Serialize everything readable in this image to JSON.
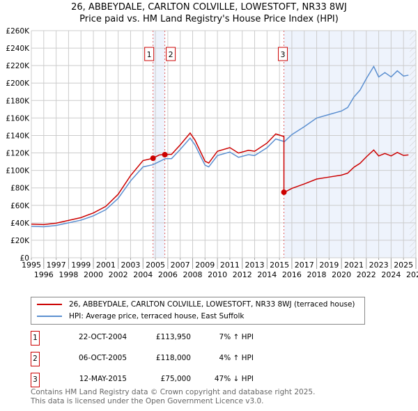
{
  "chart_data": {
    "type": "line",
    "title": "26, ABBEYDALE, CARLTON COLVILLE, LOWESTOFT, NR33 8WJ",
    "subtitle": "Price paid vs. HM Land Registry's House Price Index (HPI)",
    "xlim": [
      1995,
      2026
    ],
    "ylim": [
      0,
      260000
    ],
    "x_ticks": [
      "1995",
      "1996",
      "1997",
      "1998",
      "1999",
      "2000",
      "2001",
      "2002",
      "2003",
      "2004",
      "2005",
      "2006",
      "2007",
      "2008",
      "2009",
      "2010",
      "2011",
      "2012",
      "2013",
      "2014",
      "2015",
      "2016",
      "2017",
      "2018",
      "2019",
      "2020",
      "2021",
      "2022",
      "2023",
      "2024",
      "2025",
      "2026"
    ],
    "y_ticks": [
      {
        "v": 0,
        "l": "£0"
      },
      {
        "v": 20000,
        "l": "£20K"
      },
      {
        "v": 40000,
        "l": "£40K"
      },
      {
        "v": 60000,
        "l": "£60K"
      },
      {
        "v": 80000,
        "l": "£80K"
      },
      {
        "v": 100000,
        "l": "£100K"
      },
      {
        "v": 120000,
        "l": "£120K"
      },
      {
        "v": 140000,
        "l": "£140K"
      },
      {
        "v": 160000,
        "l": "£160K"
      },
      {
        "v": 180000,
        "l": "£180K"
      },
      {
        "v": 200000,
        "l": "£200K"
      },
      {
        "v": 220000,
        "l": "£220K"
      },
      {
        "v": 240000,
        "l": "£240K"
      },
      {
        "v": 260000,
        "l": "£260K"
      }
    ],
    "grid": true,
    "series": [
      {
        "name": "HPI: Average price, terraced house, East Suffolk",
        "color": "#5b8fd0",
        "x": [
          1995,
          1996,
          1997,
          1998,
          1999,
          2000,
          2001,
          2002,
          2003,
          2004,
          2004.8,
          2005.3,
          2005.8,
          2006.3,
          2007,
          2007.8,
          2008.2,
          2009,
          2009.3,
          2010,
          2011,
          2011.7,
          2012.5,
          2013,
          2014,
          2014.7,
          2015.4,
          2016,
          2017,
          2018,
          2019,
          2020,
          2020.5,
          2021,
          2021.5,
          2022,
          2022.6,
          2023,
          2023.5,
          2024,
          2024.5,
          2025,
          2025.4
        ],
        "y": [
          36000,
          35500,
          37000,
          40000,
          43000,
          48000,
          55000,
          68000,
          88000,
          104000,
          106500,
          110000,
          113500,
          113500,
          124000,
          137000,
          129000,
          106000,
          104000,
          117000,
          121000,
          115000,
          118000,
          117000,
          126000,
          136000,
          133000,
          141000,
          150000,
          160000,
          164000,
          168000,
          172000,
          184000,
          192000,
          205000,
          219000,
          207000,
          212000,
          207000,
          214000,
          208000,
          209000
        ]
      },
      {
        "name": "26, ABBEYDALE, CARLTON COLVILLE, LOWESTOFT, NR33 8WJ (terraced house)",
        "color": "#cc0000"
      }
    ],
    "sales": [
      {
        "n": "1",
        "x": 2004.81,
        "y": 113950
      },
      {
        "n": "2",
        "x": 2005.76,
        "y": 118000
      },
      {
        "n": "3",
        "x": 2015.36,
        "y": 75000
      }
    ],
    "hatch_from": 2025.5
  },
  "legend": {
    "red": "26, ABBEYDALE, CARLTON COLVILLE, LOWESTOFT, NR33 8WJ (terraced house)",
    "blue": "HPI: Average price, terraced house, East Suffolk"
  },
  "transactions": [
    {
      "n": "1",
      "date": "22-OCT-2004",
      "price": "£113,950",
      "hpi": "7% ↑ HPI"
    },
    {
      "n": "2",
      "date": "06-OCT-2005",
      "price": "£118,000",
      "hpi": "4% ↑ HPI"
    },
    {
      "n": "3",
      "date": "12-MAY-2015",
      "price": "£75,000",
      "hpi": "47% ↓ HPI"
    }
  ],
  "footer": [
    "Contains HM Land Registry data © Crown copyright and database right 2025.",
    "This data is licensed under the Open Government Licence v3.0."
  ]
}
